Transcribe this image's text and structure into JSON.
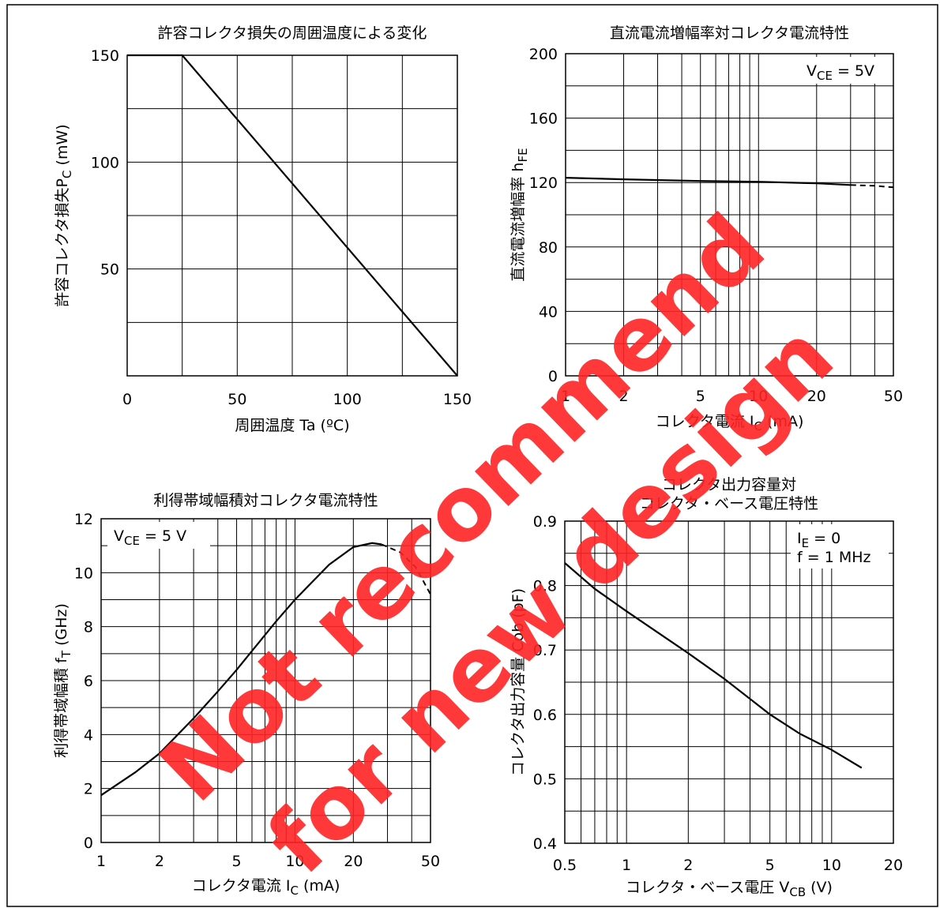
{
  "watermark": {
    "line1": "Not recommend",
    "line2": "for new design",
    "color": "#ff2424"
  },
  "chart_data": [
    {
      "id": "pc",
      "type": "line",
      "title": "許容コレクタ損失の周囲温度による変化",
      "xlabel": "周囲温度  Ta  (ºC)",
      "ylabel": "許容コレクタ損失",
      "ylabel_symbol": "P",
      "ylabel_sub": "C",
      "ylabel_unit": " (mW)",
      "x_scale": "linear",
      "xlim": [
        0,
        150
      ],
      "ylim": [
        0,
        150
      ],
      "x_ticks": [
        0,
        50,
        100,
        150
      ],
      "y_ticks": [
        50,
        100,
        150
      ],
      "x_grid": [
        0,
        25,
        50,
        75,
        100,
        125,
        150
      ],
      "y_grid": [
        0,
        25,
        50,
        75,
        100,
        125,
        150
      ],
      "series": [
        {
          "x": [
            0,
            25,
            150
          ],
          "y": [
            150,
            150,
            0
          ]
        }
      ]
    },
    {
      "id": "hfe",
      "type": "line",
      "title": "直流電流増幅率対コレクタ電流特性",
      "xlabel": "コレクタ電流  ",
      "xlabel_symbol": "I",
      "xlabel_sub": "C",
      "xlabel_unit": " (mA)",
      "ylabel": "直流電流増幅率  ",
      "ylabel_symbol": "h",
      "ylabel_sub": "FE",
      "ylabel_unit": "",
      "x_scale": "log",
      "xlim": [
        1,
        50
      ],
      "ylim": [
        0,
        200
      ],
      "x_ticks": [
        1,
        2,
        5,
        10,
        20,
        50
      ],
      "y_ticks": [
        0,
        40,
        80,
        120,
        160,
        200
      ],
      "x_grid": [
        1,
        2,
        3,
        4,
        5,
        6,
        7,
        8,
        9,
        10,
        20,
        30,
        40,
        50
      ],
      "y_grid": [
        0,
        20,
        40,
        60,
        80,
        100,
        120,
        140,
        160,
        180,
        200
      ],
      "annotations": [
        {
          "symbol": "V",
          "sub": "CE",
          "text": " = 5V"
        }
      ],
      "series": [
        {
          "style": "solid",
          "x": [
            1,
            2,
            5,
            10,
            20,
            30
          ],
          "y": [
            123,
            122,
            121,
            120.5,
            119.5,
            118.5
          ]
        },
        {
          "style": "dashed",
          "x": [
            30,
            40,
            50
          ],
          "y": [
            118.5,
            118,
            117
          ]
        }
      ]
    },
    {
      "id": "ft",
      "type": "line",
      "title": "利得帯域幅積対コレクタ電流特性",
      "xlabel": "コレクタ電流  ",
      "xlabel_symbol": "I",
      "xlabel_sub": "C",
      "xlabel_unit": " (mA)",
      "ylabel": "利得帯域幅積  ",
      "ylabel_symbol": "f",
      "ylabel_sub": "T",
      "ylabel_unit": " (GHz)",
      "x_scale": "log",
      "xlim": [
        1,
        50
      ],
      "ylim": [
        0,
        12
      ],
      "x_ticks": [
        1,
        2,
        5,
        10,
        20,
        50
      ],
      "y_ticks": [
        0,
        2,
        4,
        6,
        8,
        10,
        12
      ],
      "x_grid": [
        1,
        2,
        3,
        4,
        5,
        6,
        7,
        8,
        9,
        10,
        20,
        30,
        40,
        50
      ],
      "y_grid": [
        0,
        1,
        2,
        3,
        4,
        5,
        6,
        7,
        8,
        9,
        10,
        11,
        12
      ],
      "annotations": [
        {
          "symbol": "V",
          "sub": "CE",
          "text": " = 5 V"
        }
      ],
      "series": [
        {
          "style": "solid",
          "x": [
            1,
            1.5,
            2,
            3,
            4,
            5,
            6,
            8,
            10,
            15,
            20,
            25,
            28
          ],
          "y": [
            1.75,
            2.6,
            3.3,
            4.6,
            5.6,
            6.4,
            7.1,
            8.2,
            9.0,
            10.3,
            10.95,
            11.1,
            11.05
          ]
        },
        {
          "style": "dashed",
          "x": [
            28,
            35,
            42,
            50
          ],
          "y": [
            11.05,
            10.75,
            10.2,
            9.2
          ]
        }
      ]
    },
    {
      "id": "cob",
      "type": "line",
      "title": "コレクタ出力容量対",
      "title2": "コレクタ・ベース電圧特性",
      "xlabel": "コレクタ・ベース電圧  ",
      "xlabel_symbol": "V",
      "xlabel_sub": "CB",
      "xlabel_unit": " (V)",
      "ylabel": "コレクタ出力容量  Cob (pF)",
      "x_scale": "log",
      "xlim": [
        0.5,
        20
      ],
      "ylim": [
        0.4,
        0.9
      ],
      "x_ticks": [
        0.5,
        1,
        2,
        5,
        10,
        20
      ],
      "y_ticks": [
        0.4,
        0.5,
        0.6,
        0.7,
        0.8,
        0.9
      ],
      "x_grid": [
        0.5,
        0.6,
        0.7,
        0.8,
        0.9,
        1,
        2,
        3,
        4,
        5,
        6,
        7,
        8,
        9,
        10,
        20
      ],
      "y_grid": [
        0.4,
        0.45,
        0.5,
        0.55,
        0.6,
        0.65,
        0.7,
        0.75,
        0.8,
        0.85,
        0.9
      ],
      "annotations": [
        {
          "symbol": "I",
          "sub": "E",
          "text": " = 0"
        },
        {
          "symbol": "",
          "sub": "",
          "text": "f = 1 MHz"
        }
      ],
      "series": [
        {
          "style": "solid",
          "x": [
            0.5,
            0.7,
            1,
            2,
            3,
            5,
            7,
            10,
            14
          ],
          "y": [
            0.835,
            0.795,
            0.76,
            0.695,
            0.655,
            0.6,
            0.57,
            0.545,
            0.517
          ]
        }
      ]
    }
  ]
}
